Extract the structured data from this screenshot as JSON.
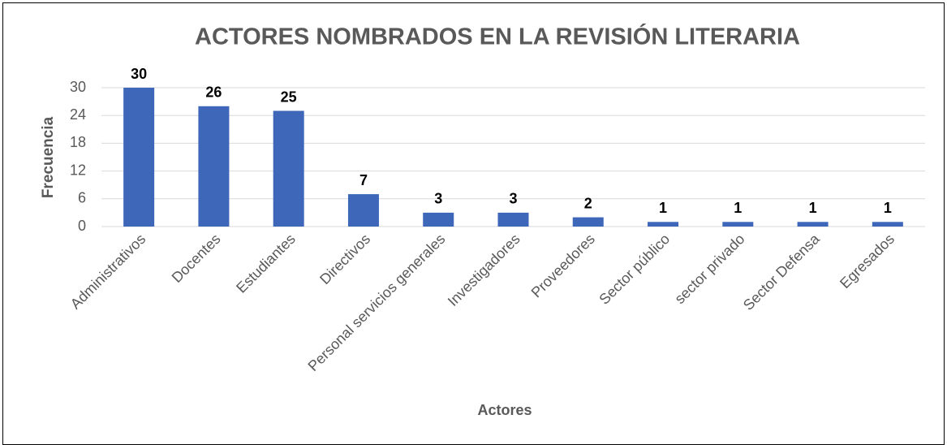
{
  "chart_data": {
    "type": "bar",
    "title": "ACTORES NOMBRADOS EN LA REVISIÓN LITERARIA",
    "x_label": "Actores",
    "y_label": "Frecuencia",
    "categories": [
      "Administrativos",
      "Docentes",
      "Estudiantes",
      "Directivos",
      "Personal servicios generales",
      "Investigadores",
      "Proveedores",
      "Sector público",
      "sector privado",
      "Sector Defensa",
      "Egresados"
    ],
    "values": [
      30,
      26,
      25,
      7,
      3,
      3,
      2,
      1,
      1,
      1,
      1
    ],
    "color": "#3e67b9",
    "ylim": [
      0,
      30
    ],
    "yticks": [
      0,
      6,
      12,
      18,
      24,
      30
    ],
    "grid": true
  }
}
